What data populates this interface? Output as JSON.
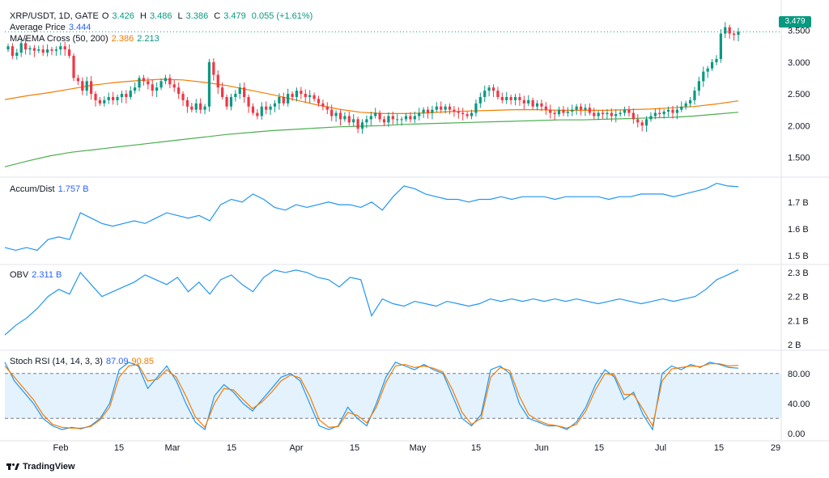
{
  "header": {
    "symbol": "XRP/USDT, 1D, GATE",
    "o_label": "O",
    "o": "3.426",
    "h_label": "H",
    "h": "3.486",
    "l_label": "L",
    "l": "3.386",
    "c_label": "C",
    "c": "3.479",
    "change": "0.055 (+1.61%)"
  },
  "indicators": {
    "avg_price_label": "Average Price",
    "avg_price": "3.444",
    "ma_label": "MA/EMA Cross (50, 200)",
    "ma_fast": "2.386",
    "ma_slow": "2.213",
    "ad_label": "Accum/Dist",
    "ad_value": "1.757 B",
    "obv_label": "OBV",
    "obv_value": "2.311 B",
    "stoch_label": "Stoch RSI (14, 14, 3, 3)",
    "stoch_k": "87.09",
    "stoch_d": "90.85"
  },
  "current_price_tag": "3.479",
  "brand": "TradingView",
  "colors": {
    "up": "#089981",
    "down": "#f23645",
    "ma_fast": "#f57c00",
    "ma_slow": "#4caf50",
    "line": "#2196f3",
    "stoch_k": "#2196f3",
    "stoch_d": "#f57c00",
    "stoch_band": "#e3f2fd",
    "avg_price": "#089981"
  },
  "chart_data": [
    {
      "type": "candlestick",
      "title": "XRP/USDT, 1D, GATE",
      "y_ticks": [
        "3.500",
        "3.000",
        "2.500",
        "2.000",
        "1.500"
      ],
      "ylim": [
        1.2,
        3.75
      ],
      "x_ticks": [
        "Feb",
        "15",
        "Mar",
        "15",
        "Apr",
        "15",
        "May",
        "15",
        "Jun",
        "15",
        "Jul",
        "15",
        "29"
      ],
      "closes": [
        3.25,
        3.1,
        3.15,
        3.3,
        3.2,
        3.22,
        3.18,
        3.2,
        3.15,
        3.2,
        3.18,
        3.2,
        3.25,
        3.2,
        3.1,
        2.75,
        2.7,
        2.55,
        2.7,
        2.5,
        2.4,
        2.35,
        2.4,
        2.45,
        2.4,
        2.45,
        2.5,
        2.45,
        2.55,
        2.6,
        2.75,
        2.7,
        2.65,
        2.55,
        2.6,
        2.7,
        2.75,
        2.65,
        2.6,
        2.5,
        2.4,
        2.3,
        2.25,
        2.35,
        2.25,
        2.3,
        3.0,
        2.8,
        2.6,
        2.45,
        2.3,
        2.45,
        2.5,
        2.6,
        2.45,
        2.3,
        2.2,
        2.15,
        2.3,
        2.25,
        2.3,
        2.35,
        2.45,
        2.35,
        2.5,
        2.45,
        2.55,
        2.5,
        2.45,
        2.48,
        2.42,
        2.35,
        2.3,
        2.25,
        2.15,
        2.2,
        2.1,
        2.15,
        2.05,
        2.1,
        1.95,
        2.05,
        2.1,
        2.15,
        2.2,
        2.1,
        2.05,
        2.15,
        2.1,
        2.1,
        2.1,
        2.15,
        2.1,
        2.15,
        2.2,
        2.25,
        2.2,
        2.25,
        2.3,
        2.25,
        2.3,
        2.25,
        2.22,
        2.2,
        2.18,
        2.15,
        2.2,
        2.35,
        2.45,
        2.55,
        2.6,
        2.55,
        2.45,
        2.4,
        2.45,
        2.4,
        2.45,
        2.4,
        2.35,
        2.4,
        2.3,
        2.35,
        2.3,
        2.25,
        2.2,
        2.18,
        2.25,
        2.2,
        2.22,
        2.25,
        2.3,
        2.25,
        2.28,
        2.2,
        2.15,
        2.2,
        2.18,
        2.2,
        2.15,
        2.18,
        2.2,
        2.25,
        2.2,
        2.1,
        2.05,
        2.0,
        2.1,
        2.15,
        2.2,
        2.18,
        2.22,
        2.25,
        2.2,
        2.25,
        2.3,
        2.35,
        2.4,
        2.55,
        2.7,
        2.85,
        2.9,
        3.0,
        3.05,
        3.45,
        3.55,
        3.45,
        3.43,
        3.479
      ],
      "ma_fast": [
        2.41,
        2.47,
        2.52,
        2.58,
        2.64,
        2.68,
        2.71,
        2.73,
        2.72,
        2.68,
        2.63,
        2.56,
        2.49,
        2.41,
        2.33,
        2.26,
        2.21,
        2.19,
        2.19,
        2.2,
        2.22,
        2.23,
        2.24,
        2.25,
        2.25,
        2.24,
        2.24,
        2.24,
        2.25,
        2.26,
        2.28,
        2.3,
        2.34,
        2.39
      ],
      "ma_slow": [
        1.35,
        1.44,
        1.52,
        1.58,
        1.62,
        1.66,
        1.7,
        1.74,
        1.78,
        1.82,
        1.86,
        1.89,
        1.92,
        1.94,
        1.96,
        1.98,
        1.99,
        2.0,
        2.02,
        2.03,
        2.04,
        2.05,
        2.06,
        2.07,
        2.08,
        2.09,
        2.09,
        2.1,
        2.11,
        2.12,
        2.13,
        2.15,
        2.18,
        2.21
      ],
      "avg_price": 3.444,
      "last_close": 3.479
    },
    {
      "type": "line",
      "title": "Accum/Dist",
      "y_ticks": [
        "1.7 B",
        "1.6 B",
        "1.5 B"
      ],
      "ylim": [
        1.47,
        1.79
      ],
      "values": [
        1.53,
        1.52,
        1.53,
        1.52,
        1.56,
        1.57,
        1.56,
        1.66,
        1.64,
        1.62,
        1.61,
        1.62,
        1.63,
        1.62,
        1.64,
        1.66,
        1.65,
        1.64,
        1.65,
        1.63,
        1.69,
        1.71,
        1.7,
        1.73,
        1.71,
        1.68,
        1.67,
        1.69,
        1.68,
        1.69,
        1.7,
        1.69,
        1.69,
        1.68,
        1.7,
        1.67,
        1.72,
        1.76,
        1.75,
        1.73,
        1.72,
        1.71,
        1.71,
        1.7,
        1.71,
        1.71,
        1.72,
        1.71,
        1.72,
        1.72,
        1.72,
        1.71,
        1.72,
        1.72,
        1.72,
        1.72,
        1.71,
        1.72,
        1.72,
        1.73,
        1.73,
        1.73,
        1.72,
        1.73,
        1.74,
        1.75,
        1.77,
        1.76,
        1.757
      ]
    },
    {
      "type": "line",
      "title": "OBV",
      "y_ticks": [
        "2.3 B",
        "2.2 B",
        "2.1 B",
        "2 B"
      ],
      "ylim": [
        1.98,
        2.33
      ],
      "values": [
        2.04,
        2.08,
        2.11,
        2.15,
        2.2,
        2.23,
        2.21,
        2.3,
        2.25,
        2.2,
        2.22,
        2.24,
        2.26,
        2.29,
        2.27,
        2.25,
        2.28,
        2.22,
        2.26,
        2.21,
        2.27,
        2.29,
        2.25,
        2.22,
        2.28,
        2.31,
        2.3,
        2.31,
        2.3,
        2.28,
        2.27,
        2.24,
        2.28,
        2.27,
        2.12,
        2.19,
        2.17,
        2.16,
        2.18,
        2.17,
        2.16,
        2.18,
        2.17,
        2.16,
        2.17,
        2.19,
        2.18,
        2.19,
        2.18,
        2.19,
        2.18,
        2.19,
        2.18,
        2.19,
        2.18,
        2.17,
        2.18,
        2.19,
        2.18,
        2.17,
        2.18,
        2.19,
        2.18,
        2.19,
        2.2,
        2.23,
        2.27,
        2.29,
        2.311
      ]
    },
    {
      "type": "line",
      "title": "Stoch RSI (14, 14, 3, 3)",
      "y_ticks": [
        "80.00",
        "40.00",
        "0.00"
      ],
      "ylim": [
        -10,
        110
      ],
      "band": [
        20,
        80
      ],
      "series": [
        {
          "name": "87.09",
          "values": [
            95,
            70,
            55,
            40,
            20,
            10,
            5,
            8,
            6,
            10,
            20,
            40,
            85,
            95,
            90,
            60,
            75,
            90,
            70,
            40,
            15,
            5,
            50,
            65,
            55,
            40,
            30,
            45,
            60,
            75,
            80,
            70,
            40,
            10,
            5,
            10,
            35,
            20,
            10,
            40,
            75,
            95,
            90,
            85,
            92,
            85,
            80,
            50,
            20,
            10,
            25,
            85,
            90,
            80,
            40,
            20,
            15,
            10,
            10,
            5,
            15,
            35,
            65,
            85,
            75,
            45,
            55,
            25,
            5,
            80,
            90,
            85,
            92,
            88,
            95,
            92,
            88,
            87.09
          ]
        },
        {
          "name": "90.85",
          "values": [
            90,
            75,
            60,
            45,
            25,
            12,
            8,
            7,
            7,
            9,
            18,
            35,
            75,
            90,
            92,
            70,
            72,
            85,
            75,
            50,
            22,
            8,
            40,
            60,
            58,
            45,
            33,
            42,
            55,
            70,
            78,
            74,
            50,
            18,
            8,
            9,
            28,
            24,
            14,
            35,
            68,
            90,
            92,
            88,
            90,
            87,
            82,
            58,
            28,
            12,
            20,
            75,
            88,
            84,
            50,
            25,
            17,
            12,
            10,
            7,
            12,
            30,
            58,
            80,
            78,
            52,
            52,
            32,
            10,
            70,
            86,
            88,
            90,
            89,
            93,
            93,
            90,
            90.85
          ]
        }
      ]
    }
  ]
}
